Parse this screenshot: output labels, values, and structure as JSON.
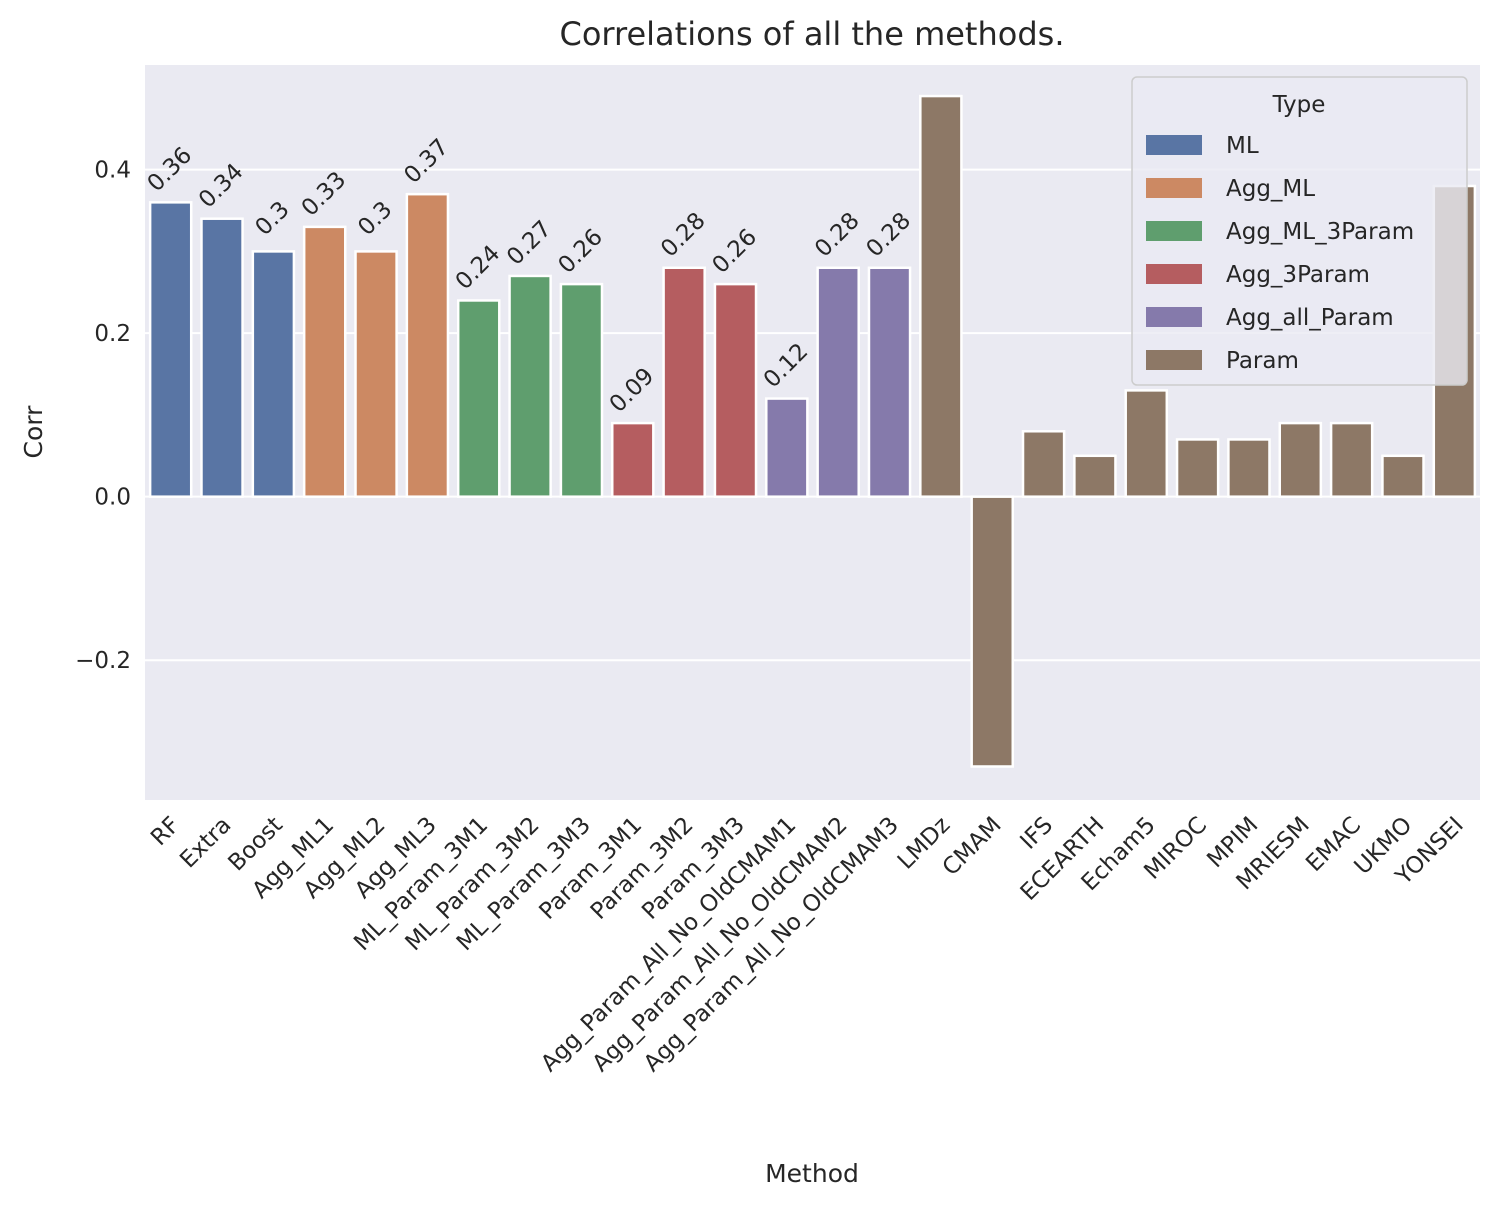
{
  "chart_data": {
    "type": "bar",
    "title": "Correlations of all the methods.",
    "x_label": "Method",
    "y_label": "Corr",
    "legend_title": "Type",
    "legend": "upper right",
    "grid": true,
    "categories": [
      "RF",
      "Extra",
      "Boost",
      "Agg_ML1",
      "Agg_ML2",
      "Agg_ML3",
      "ML_Param_3M1",
      "ML_Param_3M2",
      "ML_Param_3M3",
      "Param_3M1",
      "Param_3M2",
      "Param_3M3",
      "Agg_Param_All_No_OldCMAM1",
      "Agg_Param_All_No_OldCMAM2",
      "Agg_Param_All_No_OldCMAM3",
      "LMDz",
      "CMAM",
      "IFS",
      "ECEARTH",
      "Echam5",
      "MIROC",
      "MPIM",
      "MRIESM",
      "EMAC",
      "UKMO",
      "YONSEI"
    ],
    "series": [
      {
        "name": "ML",
        "color": "#5975a4",
        "show_values": true,
        "values": [
          0.36,
          0.34,
          0.3,
          null,
          null,
          null,
          null,
          null,
          null,
          null,
          null,
          null,
          null,
          null,
          null,
          null,
          null,
          null,
          null,
          null,
          null,
          null,
          null,
          null,
          null,
          null
        ]
      },
      {
        "name": "Agg_ML",
        "color": "#cc8963",
        "show_values": true,
        "values": [
          null,
          null,
          null,
          0.33,
          0.3,
          0.37,
          null,
          null,
          null,
          null,
          null,
          null,
          null,
          null,
          null,
          null,
          null,
          null,
          null,
          null,
          null,
          null,
          null,
          null,
          null,
          null
        ]
      },
      {
        "name": "Agg_ML_3Param",
        "color": "#5f9e6e",
        "show_values": true,
        "values": [
          null,
          null,
          null,
          null,
          null,
          null,
          0.24,
          0.27,
          0.26,
          null,
          null,
          null,
          null,
          null,
          null,
          null,
          null,
          null,
          null,
          null,
          null,
          null,
          null,
          null,
          null,
          null
        ]
      },
      {
        "name": "Agg_3Param",
        "color": "#b55d60",
        "show_values": true,
        "values": [
          null,
          null,
          null,
          null,
          null,
          null,
          null,
          null,
          null,
          0.09,
          0.28,
          0.26,
          null,
          null,
          null,
          null,
          null,
          null,
          null,
          null,
          null,
          null,
          null,
          null,
          null,
          null
        ]
      },
      {
        "name": "Agg_all_Param",
        "color": "#857aab",
        "show_values": true,
        "values": [
          null,
          null,
          null,
          null,
          null,
          null,
          null,
          null,
          null,
          null,
          null,
          null,
          0.12,
          0.28,
          0.28,
          null,
          null,
          null,
          null,
          null,
          null,
          null,
          null,
          null,
          null,
          null
        ]
      },
      {
        "name": "Param",
        "color": "#8d7866",
        "show_values": false,
        "values": [
          null,
          null,
          null,
          null,
          null,
          null,
          null,
          null,
          null,
          null,
          null,
          null,
          null,
          null,
          null,
          0.49,
          -0.33,
          0.08,
          0.05,
          0.13,
          0.07,
          0.07,
          0.09,
          0.09,
          0.05,
          0.38
        ]
      }
    ],
    "ylim": [
      -0.371,
      0.528
    ],
    "yticks": [
      {
        "value": -0.2,
        "label": "−0.2"
      },
      {
        "value": 0,
        "label": "0.0"
      },
      0.2,
      0.4
    ]
  }
}
